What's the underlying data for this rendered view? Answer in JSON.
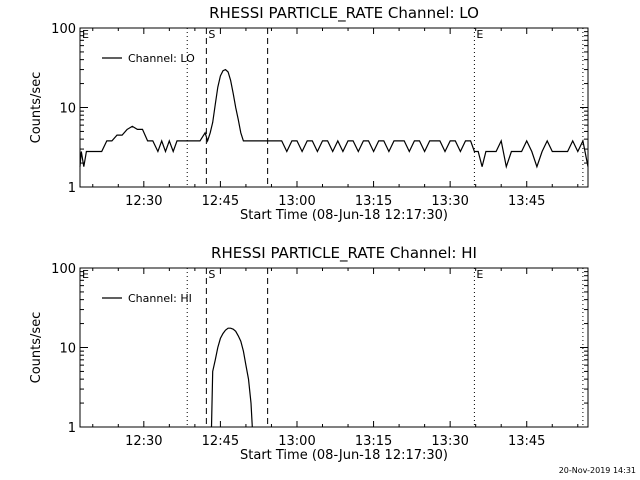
{
  "footer": {
    "timestamp": "20-Nov-2019 14:31"
  },
  "chart_data": [
    {
      "type": "line",
      "title": "RHESSI PARTICLE_RATE Channel: LO",
      "xlabel": "Start Time (08-Jun-18 12:17:30)",
      "ylabel": "Counts/sec",
      "yscale": "log",
      "ylim": [
        1,
        100
      ],
      "xlim": [
        "12:17:30",
        "13:57:00"
      ],
      "x_ticks": [
        "12:30",
        "12:45",
        "13:00",
        "13:15",
        "13:30",
        "13:45"
      ],
      "y_ticks": [
        "1",
        "10",
        "100"
      ],
      "legend": {
        "placement": "top-left",
        "entries": [
          "Channel: LO"
        ]
      },
      "markers": [
        {
          "label": "E",
          "time": "12:17:30",
          "style": "dotted"
        },
        {
          "label": "",
          "time": "12:38:30",
          "style": "dotted"
        },
        {
          "label": "S",
          "time": "12:42:15",
          "style": "dashed"
        },
        {
          "label": "",
          "time": "12:54:15",
          "style": "dashed"
        },
        {
          "label": "E",
          "time": "13:34:45",
          "style": "dotted"
        },
        {
          "label": "",
          "time": "13:56:00",
          "style": "dotted"
        }
      ],
      "series": [
        {
          "name": "Channel: LO",
          "x": [
            "12:17:30",
            "12:17:45",
            "12:18:15",
            "12:18:45",
            "12:19:15",
            "12:19:45",
            "12:21:45",
            "12:22:45",
            "12:23:45",
            "12:24:45",
            "12:25:45",
            "12:26:45",
            "12:27:45",
            "12:28:45",
            "12:29:45",
            "12:30:45",
            "12:31:45",
            "12:32:45",
            "12:33:30",
            "12:34:15",
            "12:35:00",
            "12:35:45",
            "12:36:30",
            "12:37:15",
            "12:38:00",
            "12:39:00",
            "12:40:00",
            "12:41:00",
            "12:42:00",
            "12:42:30",
            "12:43:00",
            "12:43:30",
            "12:44:00",
            "12:44:30",
            "12:45:00",
            "12:45:30",
            "12:46:00",
            "12:46:30",
            "12:47:00",
            "12:47:30",
            "12:48:00",
            "12:48:30",
            "12:49:00",
            "12:49:30",
            "12:50:00",
            "12:51:00",
            "12:52:00",
            "12:53:00",
            "12:54:00",
            "12:55:00",
            "12:56:00",
            "12:57:00",
            "12:58:00",
            "12:59:00",
            "13:00:00",
            "13:01:00",
            "13:02:00",
            "13:03:00",
            "13:04:00",
            "13:05:00",
            "13:06:00",
            "13:07:00",
            "13:08:00",
            "13:09:00",
            "13:10:00",
            "13:11:00",
            "13:12:00",
            "13:13:00",
            "13:14:00",
            "13:15:00",
            "13:16:00",
            "13:17:00",
            "13:18:00",
            "13:19:00",
            "13:20:00",
            "13:21:00",
            "13:22:00",
            "13:23:00",
            "13:24:00",
            "13:25:00",
            "13:26:00",
            "13:27:00",
            "13:28:00",
            "13:29:00",
            "13:30:00",
            "13:31:00",
            "13:32:00",
            "13:33:00",
            "13:34:00",
            "13:34:45",
            "13:35:30",
            "13:36:15",
            "13:37:00",
            "13:38:00",
            "13:39:00",
            "13:40:00",
            "13:41:00",
            "13:42:00",
            "13:43:00",
            "13:44:00",
            "13:45:00",
            "13:46:00",
            "13:47:00",
            "13:48:00",
            "13:49:00",
            "13:50:00",
            "13:51:00",
            "13:52:00",
            "13:53:00",
            "13:54:00",
            "13:55:00",
            "13:56:00",
            "13:57:00"
          ],
          "y": [
            1.8,
            2.8,
            1.8,
            2.8,
            2.8,
            2.8,
            2.8,
            3.8,
            3.8,
            4.5,
            4.5,
            5.3,
            5.8,
            5.3,
            5.3,
            3.8,
            3.8,
            2.8,
            3.8,
            2.8,
            3.8,
            2.8,
            3.8,
            3.8,
            3.8,
            3.8,
            3.8,
            3.8,
            4.8,
            3.8,
            4.8,
            6.5,
            11,
            18,
            25,
            29,
            30,
            28,
            22,
            15,
            10,
            7,
            4.8,
            3.8,
            3.8,
            3.8,
            3.8,
            3.8,
            3.8,
            3.8,
            3.8,
            3.8,
            2.8,
            3.8,
            3.8,
            2.8,
            3.8,
            3.8,
            2.8,
            3.8,
            3.8,
            2.8,
            3.8,
            2.8,
            3.8,
            3.8,
            2.8,
            3.8,
            3.8,
            2.8,
            3.8,
            3.8,
            2.8,
            3.8,
            3.8,
            3.8,
            2.8,
            3.8,
            3.8,
            2.8,
            3.8,
            3.8,
            3.8,
            2.8,
            3.8,
            3.8,
            2.8,
            3.8,
            3.8,
            2.8,
            2.8,
            1.8,
            2.8,
            2.8,
            2.8,
            3.8,
            1.8,
            2.8,
            2.8,
            2.8,
            3.8,
            2.8,
            1.8,
            2.8,
            3.8,
            2.8,
            2.8,
            2.8,
            2.8,
            3.8,
            2.8,
            3.8,
            1.8
          ]
        }
      ]
    },
    {
      "type": "line",
      "title": "RHESSI PARTICLE_RATE Channel: HI",
      "xlabel": "Start Time (08-Jun-18 12:17:30)",
      "ylabel": "Counts/sec",
      "yscale": "log",
      "ylim": [
        1,
        100
      ],
      "xlim": [
        "12:17:30",
        "13:57:00"
      ],
      "x_ticks": [
        "12:30",
        "12:45",
        "13:00",
        "13:15",
        "13:30",
        "13:45"
      ],
      "y_ticks": [
        "1",
        "10",
        "100"
      ],
      "legend": {
        "placement": "top-left",
        "entries": [
          "Channel: HI"
        ]
      },
      "markers": [
        {
          "label": "E",
          "time": "12:17:30",
          "style": "dotted"
        },
        {
          "label": "",
          "time": "12:38:30",
          "style": "dotted"
        },
        {
          "label": "S",
          "time": "12:42:15",
          "style": "dashed"
        },
        {
          "label": "",
          "time": "12:54:15",
          "style": "dashed"
        },
        {
          "label": "E",
          "time": "13:34:45",
          "style": "dotted"
        },
        {
          "label": "",
          "time": "13:56:00",
          "style": "dotted"
        }
      ],
      "series": [
        {
          "name": "Channel: HI",
          "x": [
            "12:43:15",
            "12:43:30",
            "12:44:00",
            "12:44:30",
            "12:45:00",
            "12:45:30",
            "12:46:00",
            "12:46:30",
            "12:47:00",
            "12:47:30",
            "12:48:00",
            "12:48:30",
            "12:49:00",
            "12:49:30",
            "12:50:00",
            "12:50:30",
            "12:51:00",
            "12:51:15"
          ],
          "y": [
            1,
            5,
            7,
            10,
            13,
            15,
            16.5,
            17.5,
            17.5,
            17,
            16,
            14,
            12,
            9,
            6,
            4,
            2,
            1
          ]
        }
      ]
    }
  ]
}
